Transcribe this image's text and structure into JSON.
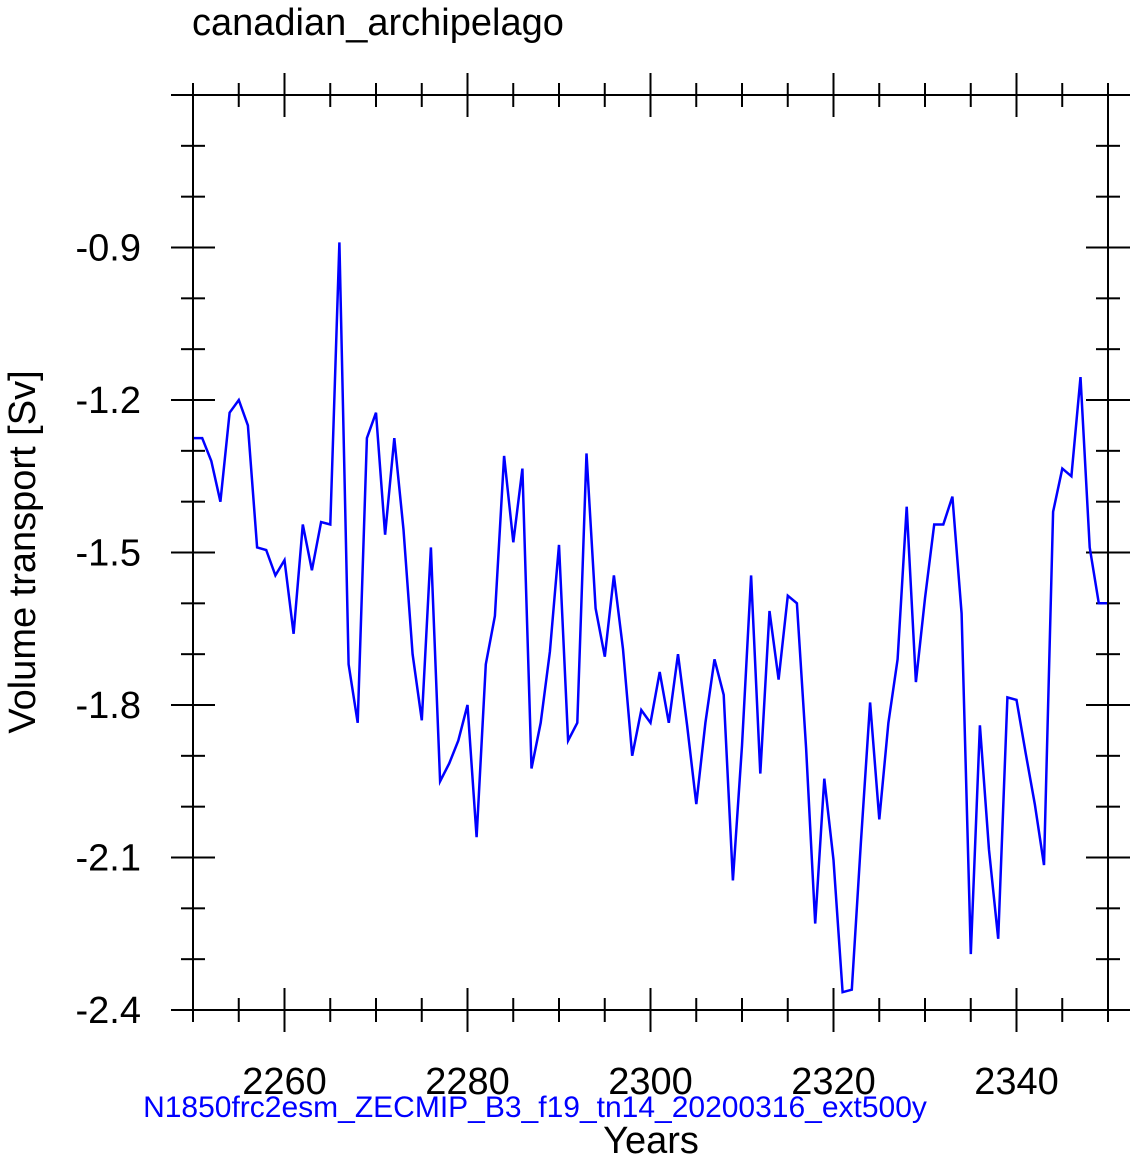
{
  "chart_data": {
    "type": "line",
    "title": "canadian_archipelago",
    "xlabel": "Years",
    "ylabel": "Volume transport [Sv]",
    "caption": "N1850frc2esm_ZECMIP_B3_f19_tn14_20200316_ext500y",
    "caption_color": "#0000ff",
    "line_color": "#0000ff",
    "xlim": [
      2250,
      2350
    ],
    "ylim": [
      -2.4,
      -0.6
    ],
    "xticks": [
      2260,
      2280,
      2300,
      2320,
      2340
    ],
    "xtick_labels": [
      "2260",
      "2280",
      "2300",
      "2320",
      "2340"
    ],
    "yticks": [
      -2.4,
      -2.1,
      -1.8,
      -1.5,
      -1.2,
      -0.9
    ],
    "ytick_labels": [
      "-2.4",
      "-2.1",
      "-1.8",
      "-1.5",
      "-1.2",
      "-0.9"
    ],
    "grid": false,
    "series": [
      {
        "x": [
          2250,
          2251,
          2252,
          2253,
          2254,
          2255,
          2256,
          2257,
          2258,
          2259,
          2260,
          2261,
          2262,
          2263,
          2264,
          2265,
          2266,
          2267,
          2268,
          2269,
          2270,
          2271,
          2272,
          2273,
          2274,
          2275,
          2276,
          2277,
          2278,
          2279,
          2280,
          2281,
          2282,
          2283,
          2284,
          2285,
          2286,
          2287,
          2288,
          2289,
          2290,
          2291,
          2292,
          2293,
          2294,
          2295,
          2296,
          2297,
          2298,
          2299,
          2300,
          2301,
          2302,
          2303,
          2304,
          2305,
          2306,
          2307,
          2308,
          2309,
          2310,
          2311,
          2312,
          2313,
          2314,
          2315,
          2316,
          2317,
          2318,
          2319,
          2320,
          2321,
          2322,
          2323,
          2324,
          2325,
          2326,
          2327,
          2328,
          2329,
          2330,
          2331,
          2332,
          2333,
          2334,
          2335,
          2336,
          2337,
          2338,
          2339,
          2340,
          2341,
          2342,
          2343,
          2344,
          2345,
          2346,
          2347,
          2348,
          2349,
          2350
        ],
        "y": [
          -1.275,
          -1.275,
          -1.32,
          -1.4,
          -1.225,
          -1.2,
          -1.25,
          -1.49,
          -1.495,
          -1.545,
          -1.515,
          -1.66,
          -1.445,
          -1.535,
          -1.44,
          -1.445,
          -0.89,
          -1.72,
          -1.835,
          -1.275,
          -1.225,
          -1.465,
          -1.275,
          -1.455,
          -1.7,
          -1.83,
          -1.49,
          -1.95,
          -1.915,
          -1.87,
          -1.8,
          -2.06,
          -1.72,
          -1.625,
          -1.31,
          -1.48,
          -1.335,
          -1.925,
          -1.835,
          -1.695,
          -1.485,
          -1.87,
          -1.835,
          -1.305,
          -1.61,
          -1.705,
          -1.545,
          -1.69,
          -1.9,
          -1.81,
          -1.835,
          -1.735,
          -1.835,
          -1.7,
          -1.84,
          -1.995,
          -1.835,
          -1.71,
          -1.78,
          -2.145,
          -1.88,
          -1.545,
          -1.935,
          -1.615,
          -1.75,
          -1.585,
          -1.6,
          -1.885,
          -2.23,
          -1.945,
          -2.105,
          -2.365,
          -2.36,
          -2.07,
          -1.795,
          -2.025,
          -1.835,
          -1.71,
          -1.41,
          -1.755,
          -1.59,
          -1.445,
          -1.445,
          -1.39,
          -1.62,
          -2.29,
          -1.84,
          -2.085,
          -2.26,
          -1.785,
          -1.79,
          -1.895,
          -1.995,
          -2.115,
          -1.42,
          -1.335,
          -1.35,
          -1.155,
          -1.49,
          -1.6,
          -1.6
        ]
      }
    ]
  }
}
